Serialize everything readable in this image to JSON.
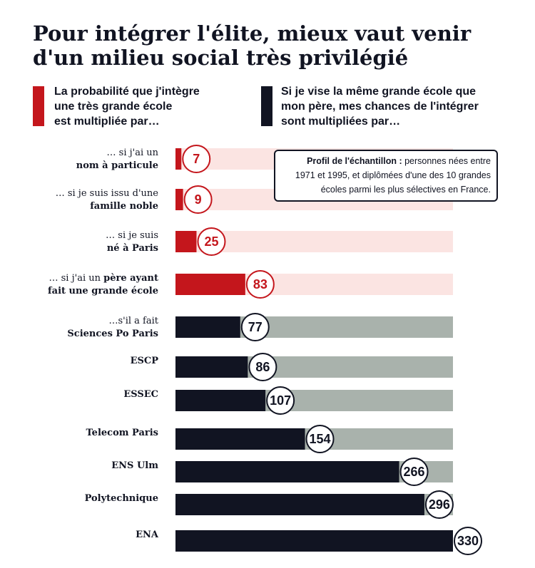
{
  "title_line1": "Pour intégrer l'élite, mieux vaut venir",
  "title_line2": "d'un milieu social très privilégié",
  "legend": {
    "red": {
      "color": "#c4161c",
      "lines": [
        "La probabilité que j'intègre",
        "une très grande école",
        "est multipliée par…"
      ]
    },
    "navy": {
      "color": "#111422",
      "lines": [
        "Si je vise la même grande école que",
        "mon père, mes chances de l'intégrer",
        "sont multipliées par…"
      ]
    }
  },
  "note": {
    "bold": "Profil de l'échantillon :",
    "line1": " personnes nées entre",
    "line2": "1971 et 1995, et diplômées d'une des 10 grandes",
    "line3": "écoles parmi les plus sélectives en France."
  },
  "colors": {
    "red": "#c4161c",
    "red_track": "#fbe4e2",
    "navy": "#111422",
    "gray_track": "#a9b2ac"
  },
  "chart_data": {
    "type": "bar",
    "orientation": "horizontal",
    "max": 330,
    "bars": [
      {
        "label_light": "… si j'ai un",
        "label_bold": "nom à particule",
        "value": 7,
        "group": "red"
      },
      {
        "label_light": "… si je suis issu d'une",
        "label_bold": "famille noble",
        "value": 9,
        "group": "red"
      },
      {
        "label_light": "… si je suis",
        "label_bold": "né à Paris",
        "value": 25,
        "group": "red"
      },
      {
        "label_light": "… si j'ai un ",
        "label_light_bold": "père ayant",
        "label_bold": "fait une grande école",
        "value": 83,
        "group": "red"
      },
      {
        "label_light": "…s'il a fait",
        "label_bold": "Sciences Po Paris",
        "value": 77,
        "group": "navy"
      },
      {
        "label_light": "",
        "label_bold": "ESCP",
        "value": 86,
        "group": "navy"
      },
      {
        "label_light": "",
        "label_bold": "ESSEC",
        "value": 107,
        "group": "navy"
      },
      {
        "label_light": "",
        "label_bold": "Telecom Paris",
        "value": 154,
        "group": "navy"
      },
      {
        "label_light": "",
        "label_bold": "ENS Ulm",
        "value": 266,
        "group": "navy"
      },
      {
        "label_light": "",
        "label_bold": "Polytechnique",
        "value": 296,
        "group": "navy"
      },
      {
        "label_light": "",
        "label_bold": "ENA",
        "value": 330,
        "group": "navy"
      }
    ]
  }
}
